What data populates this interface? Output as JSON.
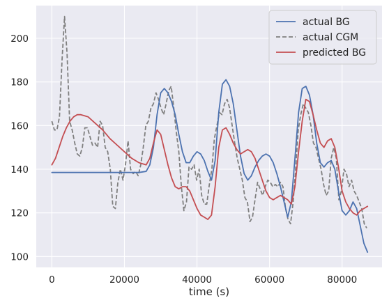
{
  "chart_data": {
    "type": "line",
    "title": "",
    "xlabel": "time (s)",
    "ylabel": "",
    "xlim": [
      -4300,
      91000
    ],
    "ylim": [
      95,
      215
    ],
    "xticks": [
      0,
      20000,
      40000,
      60000,
      80000
    ],
    "xtick_labels": [
      "0",
      "20000",
      "40000",
      "60000",
      "80000"
    ],
    "yticks": [
      100,
      120,
      140,
      160,
      180,
      200
    ],
    "ytick_labels": [
      "100",
      "120",
      "140",
      "160",
      "180",
      "200"
    ],
    "grid": true,
    "legend_position": "top-right",
    "series": [
      {
        "name": "actual BG",
        "color": "#4c72b0",
        "dash": "solid",
        "x": [
          0,
          2000,
          5000,
          10000,
          15000,
          20000,
          24000,
          26000,
          27000,
          28000,
          29000,
          30000,
          31000,
          32000,
          33000,
          34000,
          35000,
          36000,
          37000,
          38000,
          39000,
          40000,
          41000,
          42000,
          43000,
          44000,
          45000,
          46000,
          47000,
          48000,
          49000,
          50000,
          51000,
          52000,
          53000,
          54000,
          55000,
          56000,
          57000,
          58000,
          59000,
          60000,
          61000,
          62000,
          63000,
          64000,
          65000,
          66000,
          67000,
          68000,
          69000,
          70000,
          71000,
          72000,
          73000,
          74000,
          75000,
          76000,
          77000,
          78000,
          79000,
          80000,
          81000,
          82000,
          83000,
          84000,
          85000,
          86000,
          87000
        ],
        "y": [
          138.5,
          138.5,
          138.5,
          138.5,
          138.5,
          138.5,
          138.5,
          139,
          142,
          150,
          165,
          175,
          177,
          175,
          171,
          165,
          156,
          148,
          143,
          143,
          146,
          148,
          147,
          144,
          139,
          135,
          144,
          166,
          179,
          181,
          178,
          170,
          158,
          146,
          138,
          135,
          137,
          141,
          144,
          146,
          147,
          146,
          143,
          138,
          132,
          125,
          118,
          125,
          145,
          166,
          177,
          178,
          174,
          165,
          152,
          143,
          141,
          143,
          144,
          140,
          130,
          121,
          119,
          121,
          125,
          122,
          114,
          106,
          102
        ]
      },
      {
        "name": "actual CGM",
        "color": "#7f7f7f",
        "dash": "dashed",
        "x": [
          0,
          700,
          1400,
          2100,
          2800,
          3500,
          4200,
          4900,
          5600,
          6300,
          7000,
          7700,
          8400,
          9100,
          9800,
          10500,
          11200,
          11900,
          12600,
          13300,
          14000,
          14700,
          15400,
          16100,
          16800,
          17500,
          18200,
          18900,
          19600,
          20300,
          21000,
          21700,
          22400,
          23100,
          23800,
          24500,
          25200,
          25900,
          26600,
          27300,
          28000,
          28700,
          29400,
          30100,
          30800,
          31500,
          32200,
          32900,
          33600,
          34300,
          35000,
          35700,
          36400,
          37100,
          37800,
          38500,
          39200,
          39900,
          40600,
          41300,
          42000,
          42700,
          43400,
          44100,
          44800,
          45500,
          46200,
          46900,
          47600,
          48300,
          49000,
          49700,
          50400,
          51100,
          51800,
          52500,
          53200,
          53900,
          54600,
          55300,
          56000,
          56700,
          57400,
          58100,
          58800,
          59500,
          60200,
          60900,
          61600,
          62300,
          63000,
          63700,
          64400,
          65100,
          65800,
          66500,
          67200,
          67900,
          68600,
          69300,
          70000,
          70700,
          71400,
          72100,
          72800,
          73500,
          74200,
          74900,
          75600,
          76300,
          77000,
          77700,
          78400,
          79100,
          79800,
          80500,
          81200,
          81900,
          82600,
          83300,
          84000,
          84700,
          85400,
          86100,
          86800
        ],
        "y": [
          162,
          158,
          158,
          164,
          190,
          210,
          193,
          162,
          158,
          152,
          147,
          146,
          150,
          159,
          159,
          155,
          151,
          152,
          150,
          162,
          160,
          150,
          148,
          140,
          123,
          122,
          134,
          140,
          135,
          142,
          153,
          140,
          138,
          139,
          137,
          142,
          150,
          160,
          162,
          168,
          170,
          175,
          172,
          168,
          165,
          170,
          176,
          178,
          168,
          157,
          148,
          132,
          121,
          125,
          141,
          140,
          142,
          135,
          140,
          128,
          124,
          124,
          133,
          140,
          154,
          160,
          166,
          165,
          170,
          172,
          168,
          160,
          152,
          145,
          140,
          135,
          127,
          125,
          116,
          118,
          126,
          134,
          131,
          128,
          132,
          135,
          134,
          132,
          133,
          132,
          134,
          132,
          122,
          117,
          115,
          125,
          140,
          158,
          165,
          170,
          168,
          166,
          160,
          152,
          150,
          145,
          140,
          133,
          128,
          130,
          145,
          150,
          145,
          126,
          130,
          140,
          138,
          132,
          135,
          130,
          128,
          125,
          122,
          115,
          113
        ]
      },
      {
        "name": "predicted BG",
        "color": "#c44e52",
        "dash": "solid",
        "x": [
          0,
          1000,
          2000,
          3000,
          4000,
          5000,
          6000,
          7000,
          8000,
          9000,
          10000,
          12000,
          14000,
          16000,
          18000,
          20000,
          22000,
          24000,
          26000,
          27000,
          28000,
          29000,
          30000,
          31000,
          32000,
          33000,
          34000,
          35000,
          36000,
          37000,
          38000,
          39000,
          40000,
          41000,
          42000,
          43000,
          44000,
          45000,
          46000,
          47000,
          48000,
          49000,
          50000,
          51000,
          52000,
          53000,
          54000,
          55000,
          56000,
          57000,
          58000,
          59000,
          60000,
          61000,
          62000,
          63000,
          64000,
          65000,
          66000,
          67000,
          68000,
          69000,
          70000,
          71000,
          72000,
          73000,
          74000,
          75000,
          76000,
          77000,
          78000,
          79000,
          80000,
          81000,
          82000,
          83000,
          84000,
          85000,
          86000,
          87000
        ],
        "y": [
          142,
          145,
          150,
          155,
          159,
          162,
          164,
          165,
          165,
          164.5,
          164,
          161,
          158,
          154,
          151,
          148,
          145,
          143,
          142,
          145,
          152,
          158,
          156,
          149,
          142,
          136,
          132,
          131,
          132,
          132,
          130,
          126,
          122,
          119,
          118,
          117,
          119,
          132,
          150,
          158,
          159,
          156,
          152,
          149,
          147,
          148,
          149,
          148,
          145,
          140,
          135,
          130,
          127,
          126,
          127,
          128,
          127,
          126,
          124,
          132,
          148,
          162,
          172,
          171,
          165,
          158,
          152,
          150,
          153,
          154,
          150,
          141,
          130,
          125,
          122,
          120,
          119,
          121,
          122,
          123
        ]
      }
    ]
  }
}
